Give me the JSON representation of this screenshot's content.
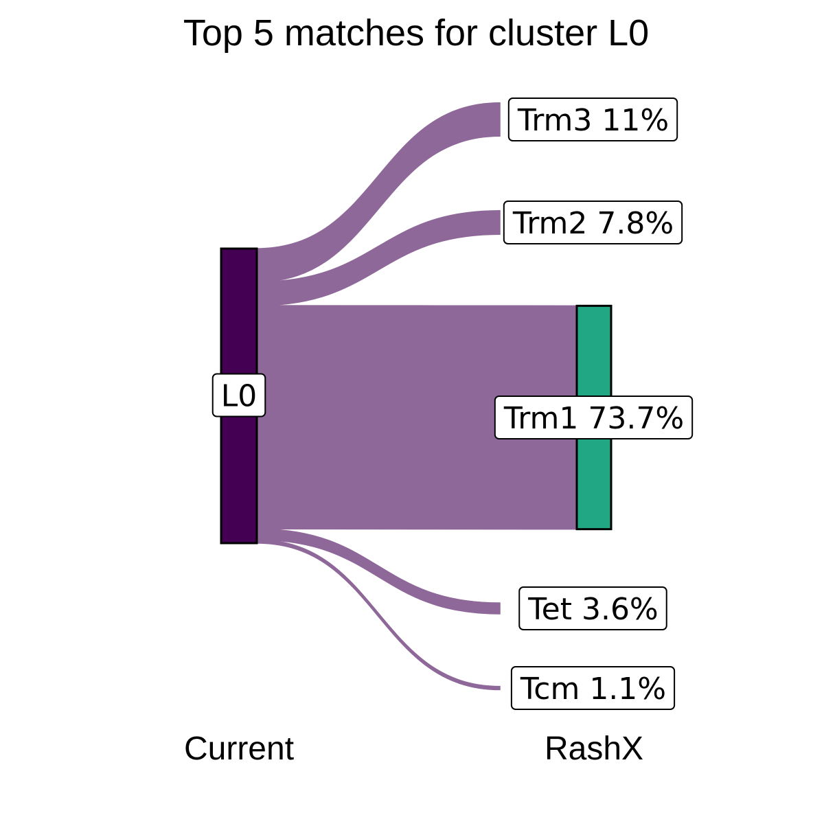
{
  "chart_data": {
    "type": "sankey",
    "title": "Top 5 matches for cluster L0",
    "source": {
      "name": "L0",
      "axis_label": "Current",
      "color": "#440154"
    },
    "target_axis_label": "RashX",
    "flow_color": "#8e6898",
    "highlight_target_color": "#21a784",
    "targets": [
      {
        "name": "Trm3",
        "pct_label": "11%",
        "value": 11.0,
        "highlighted": false
      },
      {
        "name": "Trm2",
        "pct_label": "7.8%",
        "value": 7.8,
        "highlighted": false
      },
      {
        "name": "Trm1",
        "pct_label": "73.7%",
        "value": 73.7,
        "highlighted": true
      },
      {
        "name": "Tet",
        "pct_label": "3.6%",
        "value": 3.6,
        "highlighted": false
      },
      {
        "name": "Tcm",
        "pct_label": "1.1%",
        "value": 1.1,
        "highlighted": false
      }
    ]
  }
}
